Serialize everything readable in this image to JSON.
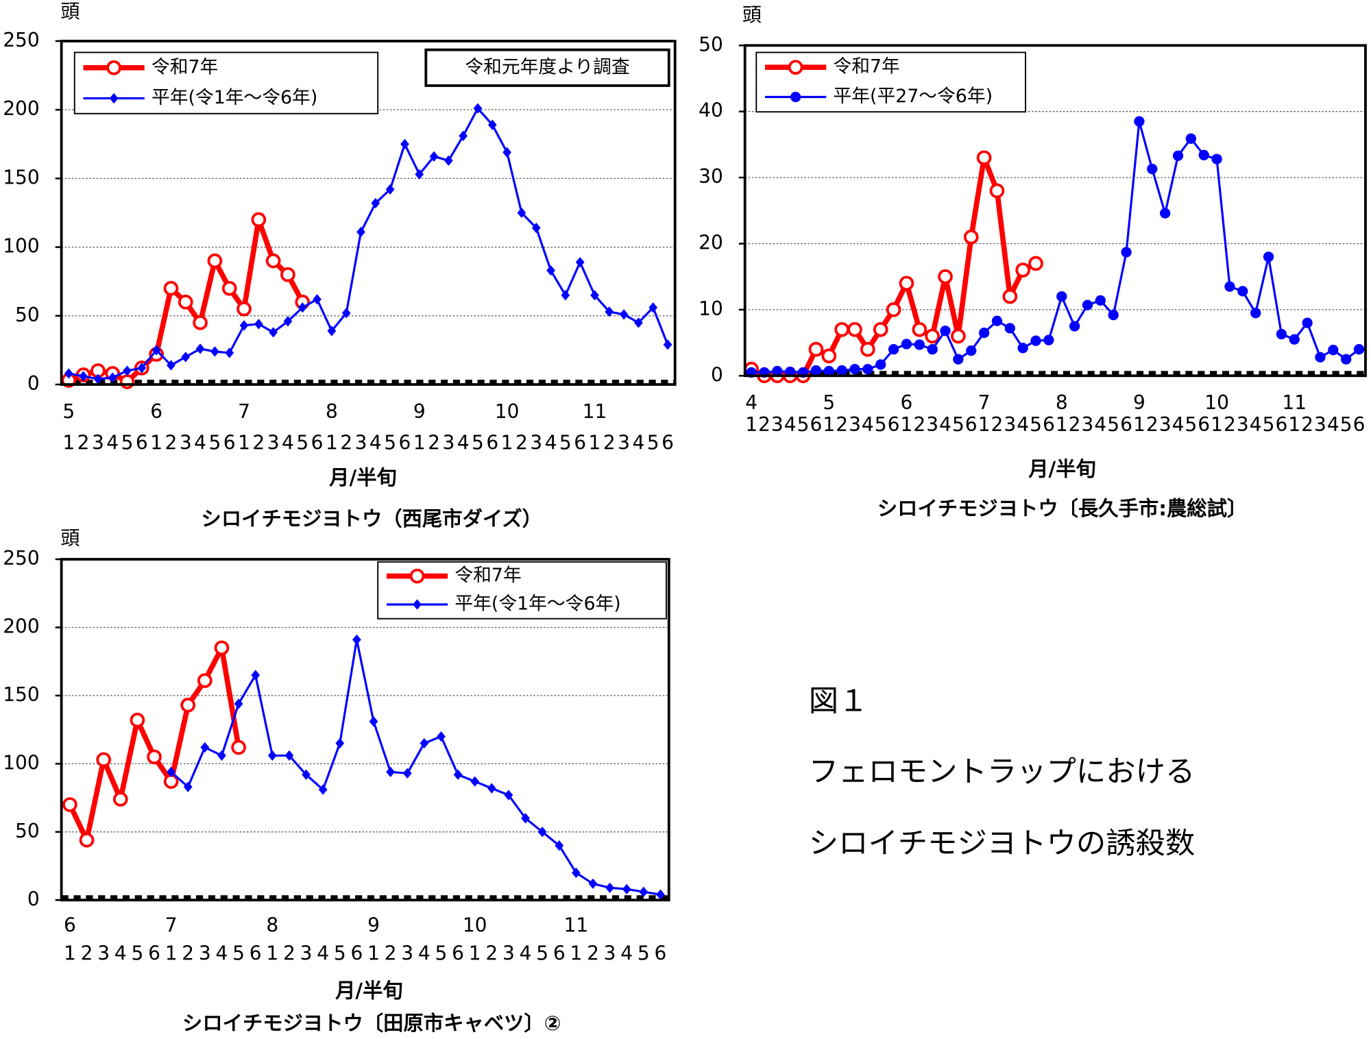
{
  "chart_data": [
    {
      "type": "line",
      "title": "シロイチモジヨトウ（西尾市ダイズ）",
      "x_label": "月/半旬",
      "y_label": "頭",
      "annotation": "令和元年度より調査",
      "months": [
        "5",
        "6",
        "7",
        "8",
        "9",
        "10",
        "11"
      ],
      "categories": [
        "1",
        "2",
        "3",
        "4",
        "5",
        "6",
        "1",
        "2",
        "3",
        "4",
        "5",
        "6",
        "1",
        "2",
        "3",
        "4",
        "5",
        "6",
        "1",
        "2",
        "3",
        "4",
        "5",
        "6",
        "1",
        "2",
        "3",
        "4",
        "5",
        "6",
        "1",
        "2",
        "3",
        "4",
        "5",
        "6",
        "1",
        "2",
        "3",
        "4",
        "5",
        "6"
      ],
      "ylim": [
        0,
        250
      ],
      "yticks": [
        0,
        50,
        100,
        150,
        200,
        250
      ],
      "grid": true,
      "series": [
        {
          "name": "令和7年",
          "color": "#ff0000",
          "marker": "circle-open",
          "values": [
            3,
            7,
            10,
            8,
            2,
            12,
            22,
            70,
            60,
            45,
            90,
            70,
            55,
            120,
            90,
            80,
            60,
            null,
            null,
            null,
            null,
            null,
            null,
            null,
            null,
            null,
            null,
            null,
            null,
            null,
            null,
            null,
            null,
            null,
            null,
            null,
            null,
            null,
            null,
            null,
            null,
            null
          ]
        },
        {
          "name": "平年(令1年～令6年)",
          "color": "#0000ff",
          "marker": "diamond",
          "values": [
            8,
            6,
            4,
            5,
            10,
            12,
            25,
            14,
            20,
            26,
            24,
            23,
            43,
            44,
            38,
            46,
            56,
            62,
            39,
            52,
            111,
            132,
            142,
            175,
            153,
            166,
            163,
            181,
            201,
            189,
            169,
            125,
            114,
            83,
            65,
            89,
            65,
            53,
            51,
            45,
            56,
            29
          ]
        }
      ]
    },
    {
      "type": "line",
      "title": "シロイチモジヨトウ〔長久手市:農総試〕",
      "x_label": "月/半旬",
      "y_label": "頭",
      "months": [
        "4",
        "5",
        "6",
        "7",
        "8",
        "9",
        "10",
        "11"
      ],
      "categories": [
        "1",
        "2",
        "3",
        "4",
        "5",
        "6",
        "1",
        "2",
        "3",
        "4",
        "5",
        "6",
        "1",
        "2",
        "3",
        "4",
        "5",
        "6",
        "1",
        "2",
        "3",
        "4",
        "5",
        "6",
        "1",
        "2",
        "3",
        "4",
        "5",
        "6",
        "1",
        "2",
        "3",
        "4",
        "5",
        "6",
        "1",
        "2",
        "3",
        "4",
        "5",
        "6",
        "1",
        "2",
        "3",
        "4",
        "5",
        "6"
      ],
      "ylim": [
        0,
        50
      ],
      "yticks": [
        0,
        10,
        20,
        30,
        40,
        50
      ],
      "grid": true,
      "series": [
        {
          "name": "令和7年",
          "color": "#ff0000",
          "marker": "circle-open",
          "values": [
            1,
            0,
            0,
            0,
            0,
            4,
            3,
            7,
            7,
            4,
            7,
            10,
            14,
            7,
            6,
            15,
            6,
            21,
            33,
            28,
            12,
            16,
            17,
            null,
            null,
            null,
            null,
            null,
            null,
            null,
            null,
            null,
            null,
            null,
            null,
            null,
            null,
            null,
            null,
            null,
            null,
            null,
            null,
            null,
            null,
            null,
            null,
            null
          ]
        },
        {
          "name": "平年(平27～令6年)",
          "color": "#0000ff",
          "marker": "circle",
          "values": [
            0.5,
            0.5,
            0.7,
            0.6,
            0.5,
            0.8,
            0.7,
            0.8,
            1,
            1,
            1.7,
            4,
            4.8,
            4.7,
            4,
            6.8,
            2.5,
            3.8,
            6.5,
            8.3,
            7.2,
            4.2,
            5.3,
            5.4,
            12,
            7.5,
            10.7,
            11.4,
            9.2,
            18.7,
            38.5,
            31.3,
            24.6,
            33.3,
            35.9,
            33.4,
            32.8,
            13.5,
            12.8,
            9.5,
            18,
            6.3,
            5.5,
            8,
            2.8,
            3.9,
            2.5,
            4
          ]
        }
      ]
    },
    {
      "type": "line",
      "title": "シロイチモジヨトウ〔田原市キャベツ〕②",
      "x_label": "月/半旬",
      "y_label": "頭",
      "months": [
        "6",
        "7",
        "8",
        "9",
        "10",
        "11"
      ],
      "categories": [
        "1",
        "2",
        "3",
        "4",
        "5",
        "6",
        "1",
        "2",
        "3",
        "4",
        "5",
        "6",
        "1",
        "2",
        "3",
        "4",
        "5",
        "6",
        "1",
        "2",
        "3",
        "4",
        "5",
        "6",
        "1",
        "2",
        "3",
        "4",
        "5",
        "6",
        "1",
        "2",
        "3",
        "4",
        "5",
        "6"
      ],
      "ylim": [
        0,
        250
      ],
      "yticks": [
        0,
        50,
        100,
        150,
        200,
        250
      ],
      "grid": true,
      "series": [
        {
          "name": "令和7年",
          "color": "#ff0000",
          "marker": "circle-open",
          "values": [
            70,
            44,
            103,
            74,
            132,
            105,
            87,
            143,
            161,
            185,
            112,
            null,
            null,
            null,
            null,
            null,
            null,
            null,
            null,
            null,
            null,
            null,
            null,
            null,
            null,
            null,
            null,
            null,
            null,
            null,
            null,
            null,
            null,
            null,
            null,
            null
          ]
        },
        {
          "name": "平年(令1年～令6年)",
          "color": "#0000ff",
          "marker": "diamond",
          "values": [
            null,
            null,
            null,
            null,
            null,
            null,
            94,
            83,
            112,
            106,
            144,
            165,
            106,
            106,
            92,
            81,
            115,
            191,
            131,
            94,
            93,
            115,
            120,
            92,
            87,
            82,
            77,
            60,
            50,
            40,
            20,
            12,
            9,
            8,
            6,
            4
          ]
        }
      ]
    }
  ],
  "caption": {
    "figure": "図１",
    "lines": [
      "フェロモントラップにおける",
      "シロイチモジヨトウの誘殺数"
    ]
  }
}
